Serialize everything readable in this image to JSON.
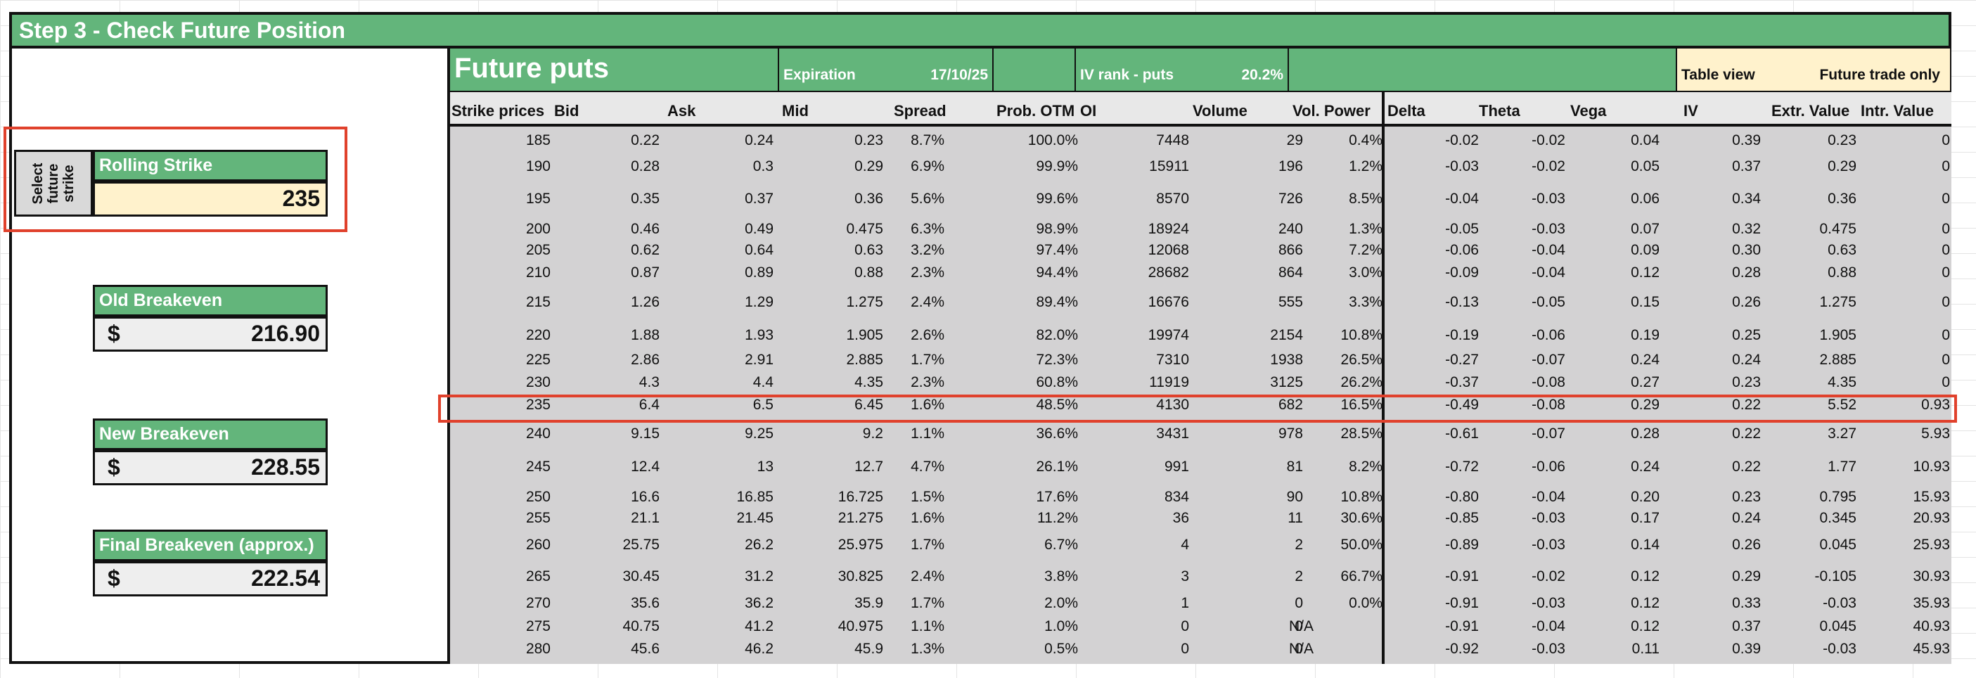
{
  "title": "Step 3 - Check Future Position",
  "select_label": [
    "Select",
    "future",
    "strike"
  ],
  "rolling": {
    "label": "Rolling Strike",
    "value": "235"
  },
  "old_breakeven": {
    "label": "Old Breakeven",
    "currency": "$",
    "value": "216.90"
  },
  "new_breakeven": {
    "label": "New Breakeven",
    "currency": "$",
    "value": "228.55"
  },
  "final_breakeven": {
    "label": "Final Breakeven (approx.)",
    "currency": "$",
    "value": "222.54"
  },
  "header": {
    "future_puts": "Future puts",
    "expiration_label": "Expiration",
    "expiration_value": "17/10/25",
    "iv_rank_label": "IV rank - puts",
    "iv_rank_value": "20.2%",
    "table_view": "Table view",
    "future_trade_only": "Future trade only"
  },
  "columns": [
    "Strike prices",
    "Bid",
    "Ask",
    "Mid",
    "Spread",
    "Prob. OTM",
    "OI",
    "Volume",
    "Vol. Power",
    "Delta",
    "Theta",
    "Vega",
    "IV",
    "Extr. Value",
    "Intr. Value"
  ],
  "rows": [
    [
      "185",
      "0.22",
      "0.24",
      "0.23",
      "8.7%",
      "100.0%",
      "7448",
      "29",
      "0.4%",
      "-0.02",
      "-0.02",
      "0.04",
      "0.39",
      "0.23",
      "0"
    ],
    [
      "190",
      "0.28",
      "0.3",
      "0.29",
      "6.9%",
      "99.9%",
      "15911",
      "196",
      "1.2%",
      "-0.03",
      "-0.02",
      "0.05",
      "0.37",
      "0.29",
      "0"
    ],
    [
      "195",
      "0.35",
      "0.37",
      "0.36",
      "5.6%",
      "99.6%",
      "8570",
      "726",
      "8.5%",
      "-0.04",
      "-0.03",
      "0.06",
      "0.34",
      "0.36",
      "0"
    ],
    [
      "200",
      "0.46",
      "0.49",
      "0.475",
      "6.3%",
      "98.9%",
      "18924",
      "240",
      "1.3%",
      "-0.05",
      "-0.03",
      "0.07",
      "0.32",
      "0.475",
      "0"
    ],
    [
      "205",
      "0.62",
      "0.64",
      "0.63",
      "3.2%",
      "97.4%",
      "12068",
      "866",
      "7.2%",
      "-0.06",
      "-0.04",
      "0.09",
      "0.30",
      "0.63",
      "0"
    ],
    [
      "210",
      "0.87",
      "0.89",
      "0.88",
      "2.3%",
      "94.4%",
      "28682",
      "864",
      "3.0%",
      "-0.09",
      "-0.04",
      "0.12",
      "0.28",
      "0.88",
      "0"
    ],
    [
      "215",
      "1.26",
      "1.29",
      "1.275",
      "2.4%",
      "89.4%",
      "16676",
      "555",
      "3.3%",
      "-0.13",
      "-0.05",
      "0.15",
      "0.26",
      "1.275",
      "0"
    ],
    [
      "220",
      "1.88",
      "1.93",
      "1.905",
      "2.6%",
      "82.0%",
      "19974",
      "2154",
      "10.8%",
      "-0.19",
      "-0.06",
      "0.19",
      "0.25",
      "1.905",
      "0"
    ],
    [
      "225",
      "2.86",
      "2.91",
      "2.885",
      "1.7%",
      "72.3%",
      "7310",
      "1938",
      "26.5%",
      "-0.27",
      "-0.07",
      "0.24",
      "0.24",
      "2.885",
      "0"
    ],
    [
      "230",
      "4.3",
      "4.4",
      "4.35",
      "2.3%",
      "60.8%",
      "11919",
      "3125",
      "26.2%",
      "-0.37",
      "-0.08",
      "0.27",
      "0.23",
      "4.35",
      "0"
    ],
    [
      "235",
      "6.4",
      "6.5",
      "6.45",
      "1.6%",
      "48.5%",
      "4130",
      "682",
      "16.5%",
      "-0.49",
      "-0.08",
      "0.29",
      "0.22",
      "5.52",
      "0.93"
    ],
    [
      "240",
      "9.15",
      "9.25",
      "9.2",
      "1.1%",
      "36.6%",
      "3431",
      "978",
      "28.5%",
      "-0.61",
      "-0.07",
      "0.28",
      "0.22",
      "3.27",
      "5.93"
    ],
    [
      "245",
      "12.4",
      "13",
      "12.7",
      "4.7%",
      "26.1%",
      "991",
      "81",
      "8.2%",
      "-0.72",
      "-0.06",
      "0.24",
      "0.22",
      "1.77",
      "10.93"
    ],
    [
      "250",
      "16.6",
      "16.85",
      "16.725",
      "1.5%",
      "17.6%",
      "834",
      "90",
      "10.8%",
      "-0.80",
      "-0.04",
      "0.20",
      "0.23",
      "0.795",
      "15.93"
    ],
    [
      "255",
      "21.1",
      "21.45",
      "21.275",
      "1.6%",
      "11.2%",
      "36",
      "11",
      "30.6%",
      "-0.85",
      "-0.03",
      "0.17",
      "0.24",
      "0.345",
      "20.93"
    ],
    [
      "260",
      "25.75",
      "26.2",
      "25.975",
      "1.7%",
      "6.7%",
      "4",
      "2",
      "50.0%",
      "-0.89",
      "-0.03",
      "0.14",
      "0.26",
      "0.045",
      "25.93"
    ],
    [
      "265",
      "30.45",
      "31.2",
      "30.825",
      "2.4%",
      "3.8%",
      "3",
      "2",
      "66.7%",
      "-0.91",
      "-0.02",
      "0.12",
      "0.29",
      "-0.105",
      "30.93"
    ],
    [
      "270",
      "35.6",
      "36.2",
      "35.9",
      "1.7%",
      "2.0%",
      "1",
      "0",
      "0.0%",
      "-0.91",
      "-0.03",
      "0.12",
      "0.33",
      "-0.03",
      "35.93"
    ],
    [
      "275",
      "40.75",
      "41.2",
      "40.975",
      "1.1%",
      "1.0%",
      "0",
      "0",
      "N/A",
      "-0.91",
      "-0.04",
      "0.12",
      "0.37",
      "0.045",
      "40.93"
    ],
    [
      "280",
      "45.6",
      "46.2",
      "45.9",
      "1.3%",
      "0.5%",
      "0",
      "0",
      "N/A",
      "-0.92",
      "-0.03",
      "0.11",
      "0.39",
      "-0.03",
      "45.93"
    ]
  ],
  "selected_strike": "235",
  "colors": {
    "green": "#63b57b",
    "yellow": "#fff2cc",
    "gray": "#d3d2d3",
    "highlight": "#e0412c"
  }
}
